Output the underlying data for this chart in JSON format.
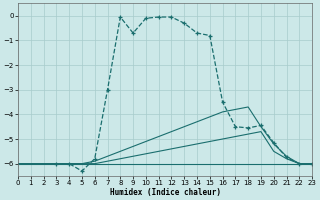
{
  "xlabel": "Humidex (Indice chaleur)",
  "background_color": "#cce8e8",
  "grid_color": "#a8cccc",
  "line_color": "#1a6e6e",
  "xlim": [
    0,
    23
  ],
  "ylim": [
    -6.5,
    0.5
  ],
  "yticks": [
    0,
    -1,
    -2,
    -3,
    -4,
    -5,
    -6
  ],
  "xticks": [
    0,
    1,
    2,
    3,
    4,
    5,
    6,
    7,
    8,
    9,
    10,
    11,
    12,
    13,
    14,
    15,
    16,
    17,
    18,
    19,
    20,
    21,
    22,
    23
  ],
  "series": [
    {
      "x": [
        0,
        1,
        2,
        3,
        4,
        5,
        6,
        7,
        8,
        9,
        10,
        11,
        12,
        13,
        14,
        15,
        16,
        17,
        18,
        19,
        20,
        21,
        22,
        23
      ],
      "y": [
        -6.0,
        -6.0,
        -6.0,
        -6.0,
        -6.0,
        -6.0,
        -6.0,
        -6.0,
        -6.0,
        -6.0,
        -6.0,
        -6.0,
        -6.0,
        -6.0,
        -6.0,
        -6.0,
        -6.0,
        -6.0,
        -6.0,
        -6.0,
        -6.0,
        -6.0,
        -6.0,
        -6.0
      ],
      "linestyle": "-",
      "marker": false,
      "linewidth": 0.8
    },
    {
      "x": [
        0,
        1,
        2,
        3,
        4,
        5,
        6,
        7,
        8,
        9,
        10,
        11,
        12,
        13,
        14,
        15,
        16,
        17,
        18,
        19,
        20,
        21,
        22,
        23
      ],
      "y": [
        -6.0,
        -6.0,
        -6.0,
        -6.0,
        -6.0,
        -6.0,
        -6.0,
        -5.9,
        -5.8,
        -5.7,
        -5.6,
        -5.5,
        -5.4,
        -5.3,
        -5.2,
        -5.1,
        -5.0,
        -4.9,
        -4.8,
        -4.7,
        -5.5,
        -5.8,
        -6.0,
        -6.0
      ],
      "linestyle": "-",
      "marker": false,
      "linewidth": 0.8
    },
    {
      "x": [
        0,
        1,
        2,
        3,
        4,
        5,
        6,
        7,
        8,
        9,
        10,
        11,
        12,
        13,
        14,
        15,
        16,
        17,
        18,
        19,
        20,
        21,
        22,
        23
      ],
      "y": [
        -6.0,
        -6.0,
        -6.0,
        -6.0,
        -6.0,
        -6.0,
        -5.9,
        -5.7,
        -5.5,
        -5.3,
        -5.1,
        -4.9,
        -4.7,
        -4.5,
        -4.3,
        -4.1,
        -3.9,
        -3.8,
        -3.7,
        -4.5,
        -5.2,
        -5.7,
        -6.0,
        -6.0
      ],
      "linestyle": "-",
      "marker": false,
      "linewidth": 0.8
    },
    {
      "x": [
        3,
        4,
        5,
        6,
        7,
        8,
        9,
        10,
        11,
        12,
        13,
        14,
        15,
        16,
        17,
        18,
        19,
        20,
        21,
        22,
        23
      ],
      "y": [
        -6.0,
        -6.0,
        -6.3,
        -5.8,
        -3.0,
        -0.05,
        -0.7,
        -0.1,
        -0.05,
        -0.05,
        -0.3,
        -0.7,
        -0.8,
        -3.5,
        -4.5,
        -4.55,
        -4.45,
        -5.15,
        -5.75,
        -6.0,
        -6.0
      ],
      "linestyle": "--",
      "marker": true,
      "linewidth": 0.9
    }
  ]
}
